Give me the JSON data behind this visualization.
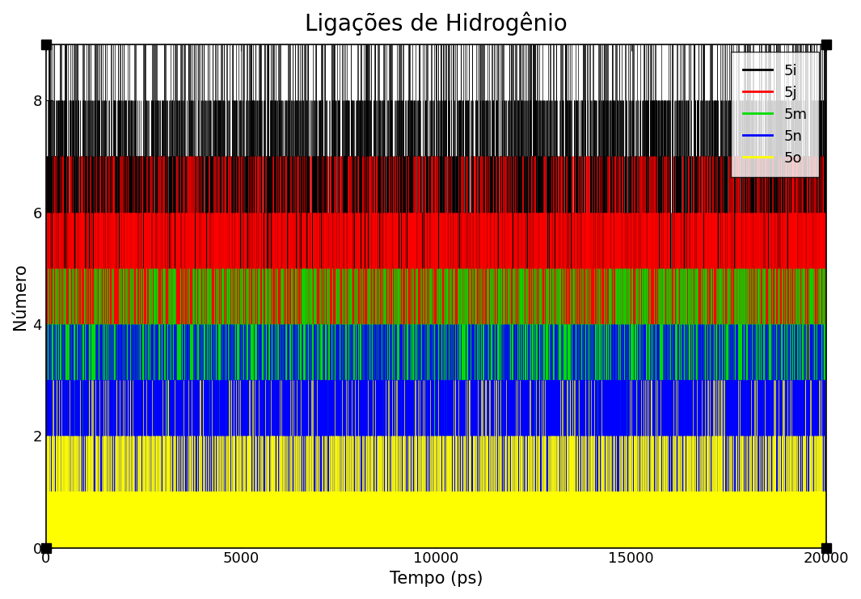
{
  "title": "Ligações de Hidrogênio",
  "xlabel": "Tempo (ps)",
  "ylabel": "Número",
  "xlim": [
    0,
    20000
  ],
  "ylim": [
    0,
    9
  ],
  "yticks": [
    0,
    2,
    4,
    6,
    8
  ],
  "xticks": [
    0,
    5000,
    10000,
    15000,
    20000
  ],
  "series": [
    "5i",
    "5j",
    "5m",
    "5n",
    "5o"
  ],
  "colors": [
    "#000000",
    "#ff0000",
    "#00dd00",
    "#0000ff",
    "#ffff00"
  ],
  "n_points": 20000,
  "seed": 42,
  "title_fontsize": 20,
  "label_fontsize": 15,
  "tick_fontsize": 13,
  "legend_fontsize": 13,
  "fig_width": 10.65,
  "fig_height": 7.41,
  "draw_order": [
    "5i",
    "5j",
    "5m",
    "5n",
    "5o"
  ]
}
